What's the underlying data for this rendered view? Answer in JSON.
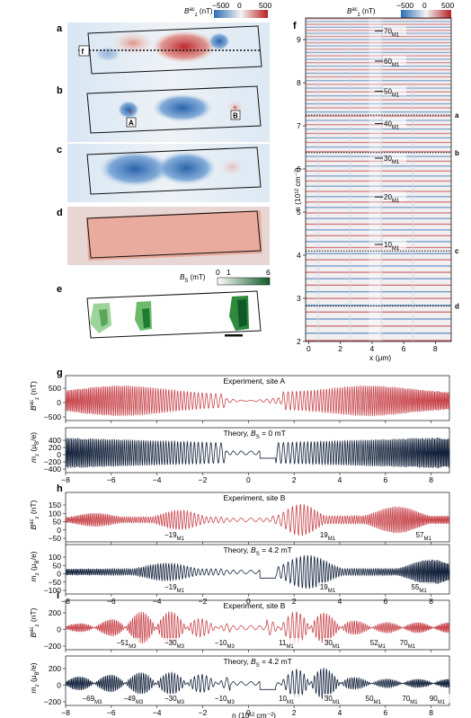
{
  "panels": {
    "a": "a",
    "b": "b",
    "c": "c",
    "d": "d",
    "e": "e",
    "f": "f",
    "g": "g",
    "h": "h",
    "i": "i"
  },
  "colorbar_ac": {
    "label": "B",
    "label_sup": "ac",
    "label_sub": "z",
    "unit": "(nT)",
    "ticks": [
      "−500",
      "0",
      "500"
    ],
    "colors": {
      "neg": "#2b6db3",
      "mid": "#f4f4f4",
      "pos": "#b81f24"
    }
  },
  "colorbar_bs": {
    "label": "B",
    "label_sub": "S",
    "unit": "(mT)",
    "ticks": [
      "0",
      "1",
      "6"
    ],
    "colors": {
      "low": "#ffffff",
      "high": "#0f5a26"
    }
  },
  "panel_a_marker": "f",
  "panel_b_sites": [
    "A",
    "B"
  ],
  "panel_f": {
    "ylabel": "n (10¹² cm⁻²)",
    "xlabel": "x (μm)",
    "xticks": [
      "0",
      "2",
      "4",
      "6",
      "8"
    ],
    "yticks": [
      "2",
      "3",
      "4",
      "5",
      "6",
      "7",
      "8",
      "9"
    ],
    "landau_labels": [
      {
        "n": "70",
        "sub": "M1"
      },
      {
        "n": "60",
        "sub": "M1"
      },
      {
        "n": "50",
        "sub": "M1"
      },
      {
        "n": "40",
        "sub": "M1"
      },
      {
        "n": "30",
        "sub": "M1"
      },
      {
        "n": "20",
        "sub": "M1"
      },
      {
        "n": "10",
        "sub": "M1"
      }
    ],
    "cut_labels": [
      "a",
      "b",
      "c",
      "d"
    ]
  },
  "traces": {
    "xlabel": "n (10¹² cm⁻²)",
    "xticks": [
      "−8",
      "−6",
      "−4",
      "−2",
      "0",
      "2",
      "4",
      "6",
      "8"
    ],
    "colors": {
      "experiment": "#c8474d",
      "theory": "#14233c"
    },
    "g_exp": {
      "title": "Experiment, site A",
      "ylabel": "B",
      "ysup": "ac",
      "ysub": "z",
      "yunit": "(nT)",
      "yticks": [
        "500",
        "0",
        "−500"
      ]
    },
    "g_th": {
      "title": "Theory, B",
      "title_sub": "S",
      "title_tail": " = 0 mT",
      "ylabel": "m",
      "ysub": "z",
      "yunit": "(μ",
      "yunit2": "B",
      "yunit3": "/e)",
      "yticks": [
        "400",
        "200",
        "0",
        "−200",
        "−400"
      ]
    },
    "h_exp": {
      "title": "Experiment, site B",
      "yticks": [
        "150",
        "100",
        "50",
        "0",
        "−50"
      ],
      "labels": [
        {
          "n": "−19",
          "sub": "M1"
        },
        {
          "n": "19",
          "sub": "M1"
        },
        {
          "n": "57",
          "sub": "M1"
        }
      ]
    },
    "h_th": {
      "title": "Theory, B",
      "title_sub": "S",
      "title_tail": " = 4.2 mT",
      "yticks": [
        "100",
        "50",
        "0",
        "−50",
        "−100"
      ],
      "labels": [
        {
          "n": "−19",
          "sub": "M1"
        },
        {
          "n": "19",
          "sub": "M1"
        },
        {
          "n": "55",
          "sub": "M1"
        }
      ]
    },
    "i_exp": {
      "title": "Experiment, site B",
      "yticks": [
        "200",
        "0",
        "−200"
      ],
      "labels": [
        {
          "n": "−51",
          "sub": "M3"
        },
        {
          "n": "−30",
          "sub": "M3"
        },
        {
          "n": "−10",
          "sub": "M3"
        },
        {
          "n": "11",
          "sub": "M1"
        },
        {
          "n": "30",
          "sub": "M1"
        },
        {
          "n": "52",
          "sub": "M1"
        },
        {
          "n": "70",
          "sub": "M1"
        }
      ]
    },
    "i_th": {
      "title": "Theory, B",
      "title_sub": "S",
      "title_tail": " = 4.2 mT",
      "yticks": [
        "200",
        "0",
        "−200"
      ],
      "labels": [
        {
          "n": "−69",
          "sub": "M3"
        },
        {
          "n": "−49",
          "sub": "M3"
        },
        {
          "n": "−30",
          "sub": "M3"
        },
        {
          "n": "−10",
          "sub": "M3"
        },
        {
          "n": "10",
          "sub": "M1"
        },
        {
          "n": "30",
          "sub": "M1"
        },
        {
          "n": "50",
          "sub": "M1"
        },
        {
          "n": "70",
          "sub": "M1"
        },
        {
          "n": "90",
          "sub": "M1"
        }
      ]
    }
  }
}
